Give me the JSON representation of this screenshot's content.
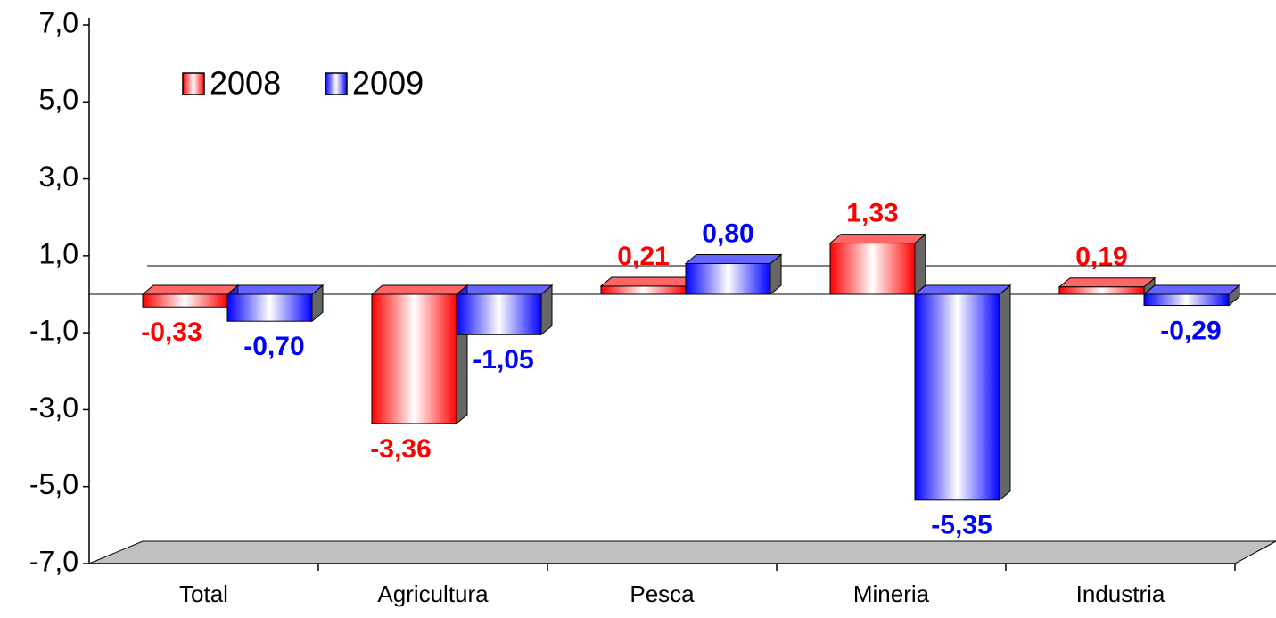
{
  "chart_data": {
    "type": "bar",
    "categories": [
      "Total",
      "Agricultura",
      "Pesca",
      "Mineria",
      "Industria"
    ],
    "series": [
      {
        "name": "2008",
        "color": "#ff0000",
        "values": [
          -0.33,
          -3.36,
          0.21,
          1.33,
          0.19
        ],
        "value_labels": [
          "-0,33",
          "-3,36",
          "0,21",
          "1,33",
          "0,19"
        ]
      },
      {
        "name": "2009",
        "color": "#0000ff",
        "values": [
          -0.7,
          -1.05,
          0.8,
          -5.35,
          -0.29
        ],
        "value_labels": [
          "-0,70",
          "-1,05",
          "0,80",
          "-5,35",
          "-0,29"
        ]
      }
    ],
    "ylim": [
      -7,
      7
    ],
    "yticks": [
      {
        "value": -7,
        "label": "-7,0"
      },
      {
        "value": -5,
        "label": "-5,0"
      },
      {
        "value": -3,
        "label": "-3,0"
      },
      {
        "value": -1,
        "label": "-1,0"
      },
      {
        "value": 1,
        "label": "1,0"
      },
      {
        "value": 3,
        "label": "3,0"
      },
      {
        "value": 5,
        "label": "5,0"
      },
      {
        "value": 7,
        "label": "7,0"
      }
    ],
    "legend": "top-left"
  }
}
